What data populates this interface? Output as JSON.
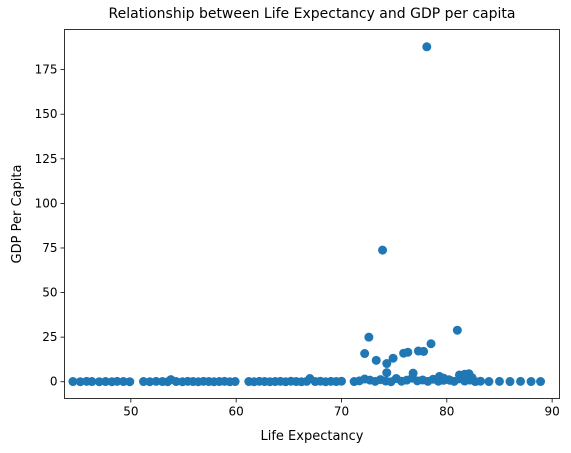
{
  "chart_data": {
    "type": "scatter",
    "title": "Relationship between Life Expectancy and GDP per capita",
    "xlabel": "Life Expectancy",
    "ylabel": "GDP Per Capita",
    "xlim": [
      43.7,
      90.7
    ],
    "ylim": [
      -9.4,
      197.5
    ],
    "xticks": [
      40,
      50,
      60,
      70,
      80,
      90
    ],
    "yticks": [
      0,
      25,
      50,
      75,
      100,
      125,
      150,
      175
    ],
    "grid": false,
    "legend": "none",
    "marker_color": "#1f77b4",
    "points": [
      [
        44.5,
        0.1
      ],
      [
        45.2,
        0.0
      ],
      [
        45.8,
        0.2
      ],
      [
        46.3,
        0.1
      ],
      [
        47.0,
        0.0
      ],
      [
        47.6,
        0.1
      ],
      [
        48.2,
        0.0
      ],
      [
        48.7,
        0.2
      ],
      [
        49.3,
        0.1
      ],
      [
        49.9,
        0.0
      ],
      [
        51.2,
        0.1
      ],
      [
        51.8,
        0.0
      ],
      [
        52.4,
        0.2
      ],
      [
        53.0,
        0.1
      ],
      [
        53.5,
        0.0
      ],
      [
        53.8,
        1.2
      ],
      [
        54.3,
        0.1
      ],
      [
        54.9,
        0.0
      ],
      [
        55.4,
        0.2
      ],
      [
        55.9,
        0.1
      ],
      [
        56.4,
        0.0
      ],
      [
        56.9,
        0.2
      ],
      [
        57.4,
        0.1
      ],
      [
        57.9,
        0.0
      ],
      [
        58.4,
        0.1
      ],
      [
        58.9,
        0.2
      ],
      [
        59.4,
        0.0
      ],
      [
        59.9,
        0.1
      ],
      [
        61.2,
        0.1
      ],
      [
        61.7,
        0.0
      ],
      [
        62.2,
        0.2
      ],
      [
        62.7,
        0.1
      ],
      [
        63.2,
        0.0
      ],
      [
        63.7,
        0.1
      ],
      [
        64.2,
        0.2
      ],
      [
        64.7,
        0.0
      ],
      [
        65.2,
        0.3
      ],
      [
        65.7,
        0.1
      ],
      [
        66.2,
        0.0
      ],
      [
        66.7,
        0.2
      ],
      [
        67.0,
        1.8
      ],
      [
        67.5,
        0.1
      ],
      [
        68.0,
        0.3
      ],
      [
        68.5,
        0.0
      ],
      [
        69.0,
        0.2
      ],
      [
        69.5,
        0.1
      ],
      [
        70.0,
        0.3
      ],
      [
        71.2,
        0.1
      ],
      [
        71.7,
        0.5
      ],
      [
        72.2,
        1.5
      ],
      [
        72.7,
        0.9
      ],
      [
        73.2,
        0.2
      ],
      [
        73.7,
        1.2
      ],
      [
        74.2,
        0.4
      ],
      [
        74.7,
        0.0
      ],
      [
        75.2,
        1.8
      ],
      [
        75.7,
        0.3
      ],
      [
        76.2,
        0.9
      ],
      [
        76.7,
        2.0
      ],
      [
        77.2,
        0.5
      ],
      [
        77.7,
        1.0
      ],
      [
        78.2,
        0.2
      ],
      [
        78.7,
        1.4
      ],
      [
        79.2,
        0.3
      ],
      [
        79.7,
        0.8
      ],
      [
        80.2,
        1.1
      ],
      [
        80.7,
        0.2
      ],
      [
        81.2,
        1.6
      ],
      [
        81.7,
        0.4
      ],
      [
        82.2,
        0.9
      ],
      [
        82.7,
        0.1
      ],
      [
        83.2,
        0.3
      ],
      [
        84.0,
        0.1
      ],
      [
        85.0,
        0.2
      ],
      [
        86.0,
        0.1
      ],
      [
        87.0,
        0.2
      ],
      [
        88.0,
        0.1
      ],
      [
        88.9,
        0.1
      ],
      [
        72.2,
        15.8
      ],
      [
        72.6,
        25.0
      ],
      [
        73.3,
        12.0
      ],
      [
        73.9,
        73.8
      ],
      [
        74.3,
        10.2
      ],
      [
        74.3,
        5.1
      ],
      [
        74.9,
        13.2
      ],
      [
        75.9,
        16.0
      ],
      [
        76.3,
        16.5
      ],
      [
        76.8,
        4.8
      ],
      [
        77.3,
        17.2
      ],
      [
        77.8,
        17.0
      ],
      [
        78.1,
        187.8
      ],
      [
        78.5,
        21.3
      ],
      [
        79.3,
        3.0
      ],
      [
        79.7,
        2.0
      ],
      [
        80.3,
        0.8
      ],
      [
        81.0,
        28.9
      ],
      [
        81.2,
        3.8
      ],
      [
        81.7,
        4.2
      ],
      [
        82.1,
        4.5
      ],
      [
        82.4,
        2.2
      ]
    ]
  }
}
